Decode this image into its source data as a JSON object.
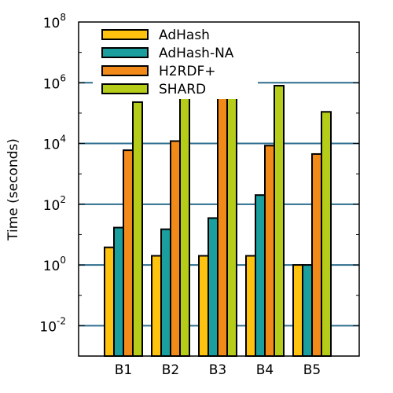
{
  "chart_data": {
    "type": "bar",
    "yscale": "log",
    "ylabel": "Time (seconds)",
    "ylim": [
      0.001,
      100000000
    ],
    "categories": [
      "B1",
      "B2",
      "B3",
      "B4",
      "B5"
    ],
    "yticks": [
      {
        "base": "10",
        "exp": "8",
        "value": 100000000
      },
      {
        "base": "10",
        "exp": "6",
        "value": 1000000
      },
      {
        "base": "10",
        "exp": "4",
        "value": 10000
      },
      {
        "base": "10",
        "exp": "2",
        "value": 100
      },
      {
        "base": "10",
        "exp": "0",
        "value": 1
      },
      {
        "base": "10",
        "exp": "-2",
        "value": 0.01
      }
    ],
    "grid": "horizontal at major ticks",
    "legend_position": "top-left",
    "series": [
      {
        "name": "AdHash",
        "color": "#FFC20E",
        "values": [
          3.8,
          2.0,
          2.0,
          2.0,
          1.0
        ]
      },
      {
        "name": "AdHash-NA",
        "color": "#1A9E9E",
        "values": [
          17,
          15,
          35,
          200,
          1.0
        ]
      },
      {
        "name": "H2RDF+",
        "color": "#F28A1A",
        "values": [
          6000,
          12000,
          350000,
          8500,
          4500
        ]
      },
      {
        "name": "SHARD",
        "color": "#B5CC18",
        "values": [
          230000,
          320000,
          550000,
          800000,
          110000
        ]
      }
    ],
    "grid_color": "#2E6E8E"
  }
}
